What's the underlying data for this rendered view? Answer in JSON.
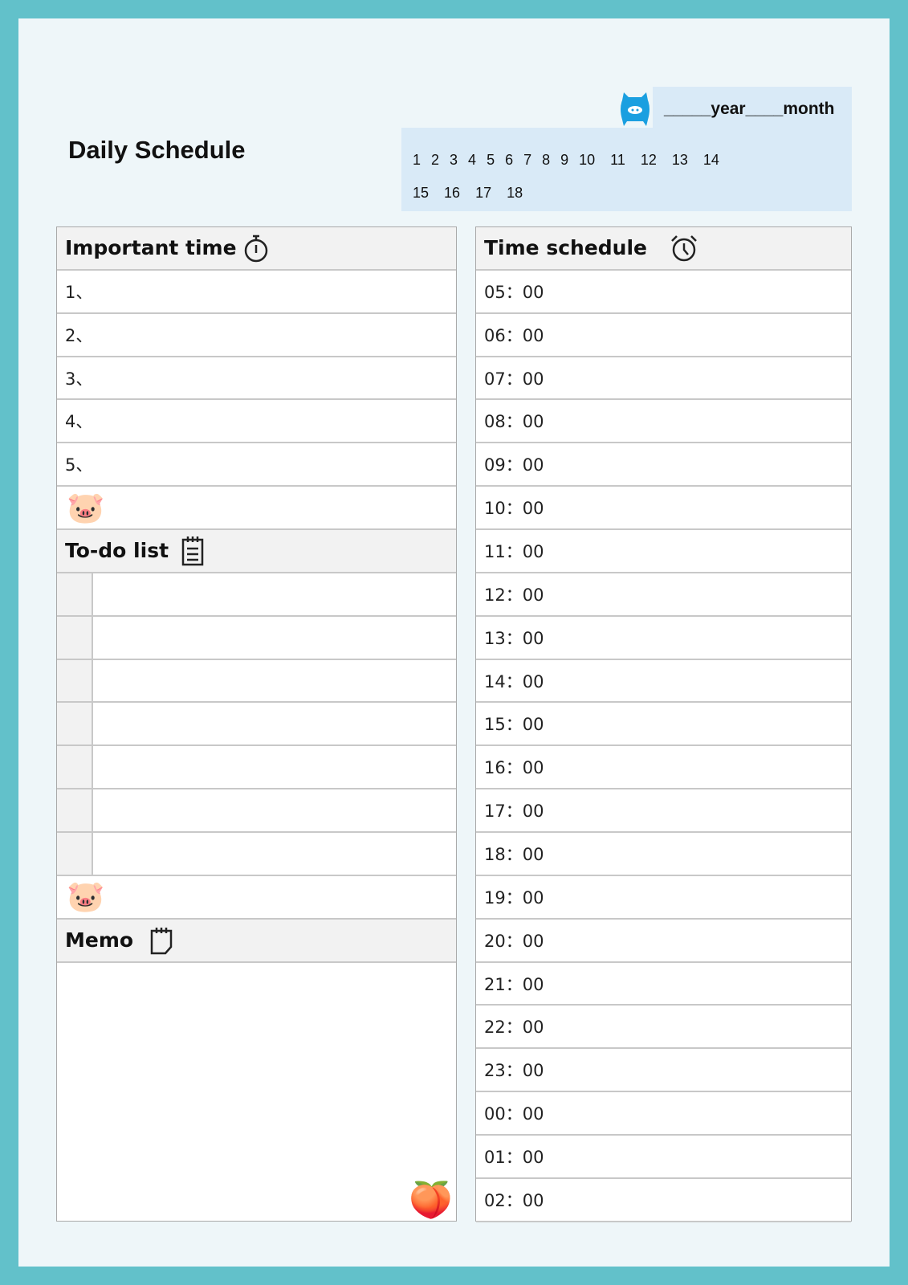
{
  "header": {
    "title": "Daily Schedule",
    "year_month": "_____year____month",
    "days_row1": [
      "1",
      "2",
      "3",
      "4",
      "5",
      "6",
      "7",
      "8",
      "9",
      "10",
      "11",
      "12",
      "13",
      "14"
    ],
    "days_row2": [
      "15",
      "16",
      "17",
      "18"
    ]
  },
  "important": {
    "title": "Important time",
    "items": [
      "1、",
      "2、",
      "3、",
      "4、",
      "5、"
    ]
  },
  "todo": {
    "title": "To-do list"
  },
  "memo": {
    "title": "Memo"
  },
  "schedule": {
    "title": "Time schedule",
    "times": [
      "05：00",
      "06：00",
      "07：00",
      "08：00",
      "09：00",
      "10：00",
      "11：00",
      "12：00",
      "13：00",
      "14：00",
      "15：00",
      "16：00",
      "17：00",
      "18：00",
      "19：00",
      "20：00",
      "21：00",
      "22：00",
      "23：00",
      "00：00",
      "01：00",
      "02：00"
    ]
  },
  "colors": {
    "border": "#62c1ca",
    "page": "#eef6f9",
    "date_box": "#d9eaf7",
    "header_row": "#f2f2f2",
    "pig_icon": "#1a9fe0"
  }
}
